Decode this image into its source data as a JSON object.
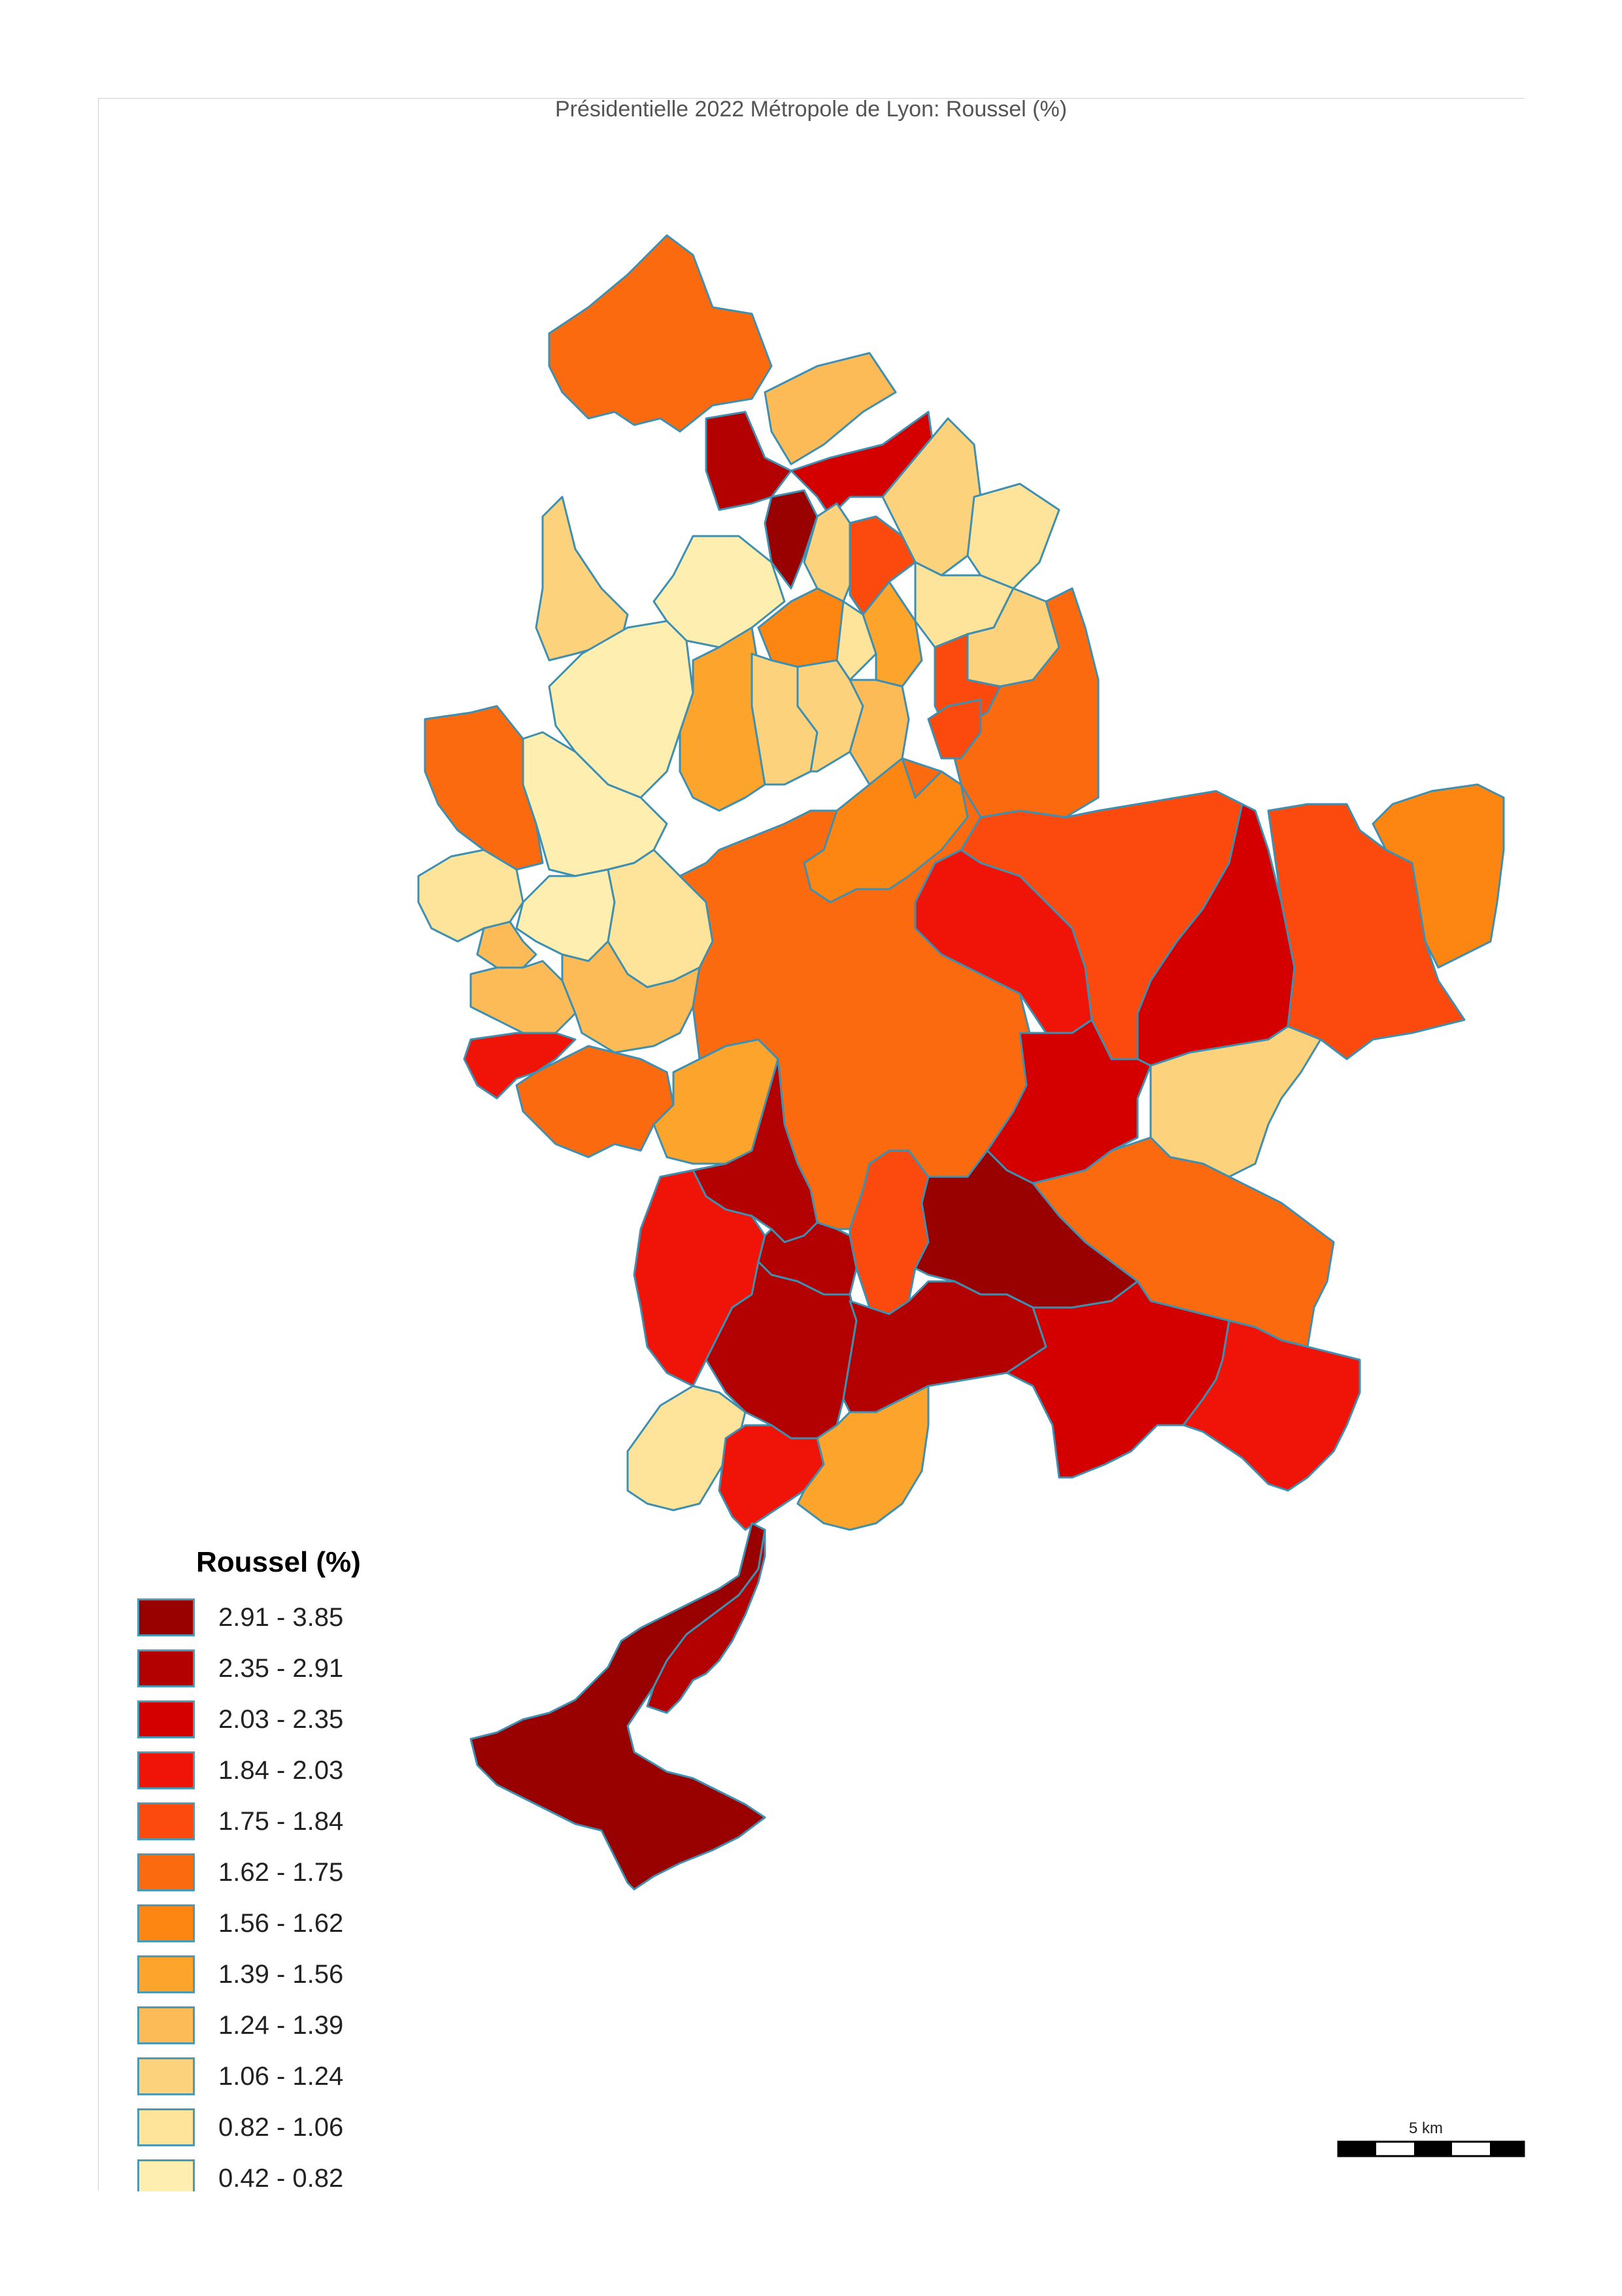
{
  "map": {
    "title": "Présidentielle 2022 Métropole de Lyon: Roussel  (%)"
  },
  "legend": {
    "title": "Roussel (%)",
    "classes": [
      {
        "label": "2.91 - 3.85",
        "color": "#990000"
      },
      {
        "label": "2.35 - 2.91",
        "color": "#b30000"
      },
      {
        "label": "2.03 - 2.35",
        "color": "#d40000"
      },
      {
        "label": "1.84 - 2.03",
        "color": "#f01408"
      },
      {
        "label": "1.75 - 1.84",
        "color": "#fc4a0e"
      },
      {
        "label": "1.62 - 1.75",
        "color": "#fc6a10"
      },
      {
        "label": "1.56 - 1.62",
        "color": "#fd8512"
      },
      {
        "label": "1.39 - 1.56",
        "color": "#fda42c"
      },
      {
        "label": "1.24 - 1.39",
        "color": "#fdbb57"
      },
      {
        "label": "1.06 - 1.24",
        "color": "#fdd27d"
      },
      {
        "label": "0.82 - 1.06",
        "color": "#fde49a"
      },
      {
        "label": "0.42 - 0.82",
        "color": "#feeeb0"
      }
    ]
  },
  "scale": {
    "label": "5 km"
  }
}
